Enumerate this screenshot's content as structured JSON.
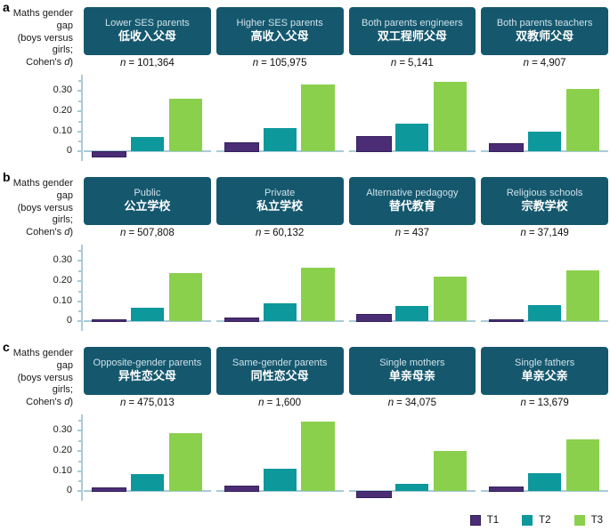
{
  "figure": {
    "axis_label": {
      "line1": "Maths gender",
      "line2": "gap",
      "line3": "(boys versus girls;",
      "line4_pre": "Cohen's ",
      "line4_italic": "d",
      "line4_post": ")"
    },
    "n_symbol": "n",
    "eq": "=",
    "ytick_labels": [
      "0.30",
      "0.20",
      "0.10",
      "0"
    ]
  },
  "legend": {
    "position": "bottom-right",
    "items": [
      {
        "label": "T1",
        "color": "#4b2d76",
        "border": "#35205a"
      },
      {
        "label": "T2",
        "color": "#0d989c"
      },
      {
        "label": "T3",
        "color": "#8ad04d"
      }
    ]
  },
  "colors": {
    "header_bg": "#15586e",
    "header_text_en": "#cfe1e9",
    "header_text_zh": "#ffffff",
    "axis": "#a9cbd8"
  },
  "chart_data": [
    {
      "type": "bar",
      "row_label": "a",
      "ylabel": "Maths gender gap (boys versus girls; Cohen's d)",
      "ylim": [
        -0.045,
        0.38
      ],
      "yticks": [
        0,
        0.1,
        0.2,
        0.3
      ],
      "grid": false,
      "series_labels": [
        "T1",
        "T2",
        "T3"
      ],
      "panels": [
        {
          "title_en": "Lower SES parents",
          "title_zh": "低收入父母",
          "n": "101,364",
          "values": [
            -0.02,
            0.07,
            0.26
          ]
        },
        {
          "title_en": "Higher SES parents",
          "title_zh": "高收入父母",
          "n": "105,975",
          "values": [
            0.04,
            0.115,
            0.33
          ]
        },
        {
          "title_en": "Both parents engineers",
          "title_zh": "双工程师父母",
          "n": "5,141",
          "values": [
            0.07,
            0.135,
            0.345
          ]
        },
        {
          "title_en": "Both parents teachers",
          "title_zh": "双教师父母",
          "n": "4,907",
          "values": [
            0.035,
            0.095,
            0.31
          ]
        }
      ]
    },
    {
      "type": "bar",
      "row_label": "b",
      "ylabel": "Maths gender gap (boys versus girls; Cohen's d)",
      "ylim": [
        -0.045,
        0.38
      ],
      "yticks": [
        0,
        0.1,
        0.2,
        0.3
      ],
      "grid": false,
      "series_labels": [
        "T1",
        "T2",
        "T3"
      ],
      "panels": [
        {
          "title_en": "Public",
          "title_zh": "公立学校",
          "n": "507,808",
          "values": [
            0.005,
            0.065,
            0.24
          ]
        },
        {
          "title_en": "Private",
          "title_zh": "私立学校",
          "n": "60,132",
          "values": [
            0.012,
            0.09,
            0.265
          ]
        },
        {
          "title_en": "Alternative pedagogy",
          "title_zh": "替代教育",
          "n": "437",
          "values": [
            0.03,
            0.075,
            0.22
          ]
        },
        {
          "title_en": "Religious schools",
          "title_zh": "宗教学校",
          "n": "37,149",
          "values": [
            0.005,
            0.08,
            0.25
          ]
        }
      ]
    },
    {
      "type": "bar",
      "row_label": "c",
      "ylabel": "Maths gender gap (boys versus girls; Cohen's d)",
      "ylim": [
        -0.045,
        0.38
      ],
      "yticks": [
        0,
        0.1,
        0.2,
        0.3
      ],
      "grid": false,
      "series_labels": [
        "T1",
        "T2",
        "T3"
      ],
      "panels": [
        {
          "title_en": "Opposite-gender parents",
          "title_zh": "异性恋父母",
          "n": "475,013",
          "values": [
            0.012,
            0.085,
            0.285
          ]
        },
        {
          "title_en": "Same-gender parents",
          "title_zh": "同性恋父母",
          "n": "1,600",
          "values": [
            0.02,
            0.11,
            0.345
          ]
        },
        {
          "title_en": "Single mothers",
          "title_zh": "单亲母亲",
          "n": "34,075",
          "values": [
            -0.025,
            0.035,
            0.2
          ]
        },
        {
          "title_en": "Single fathers",
          "title_zh": "单亲父亲",
          "n": "13,679",
          "values": [
            0.015,
            0.09,
            0.255
          ]
        }
      ]
    }
  ]
}
